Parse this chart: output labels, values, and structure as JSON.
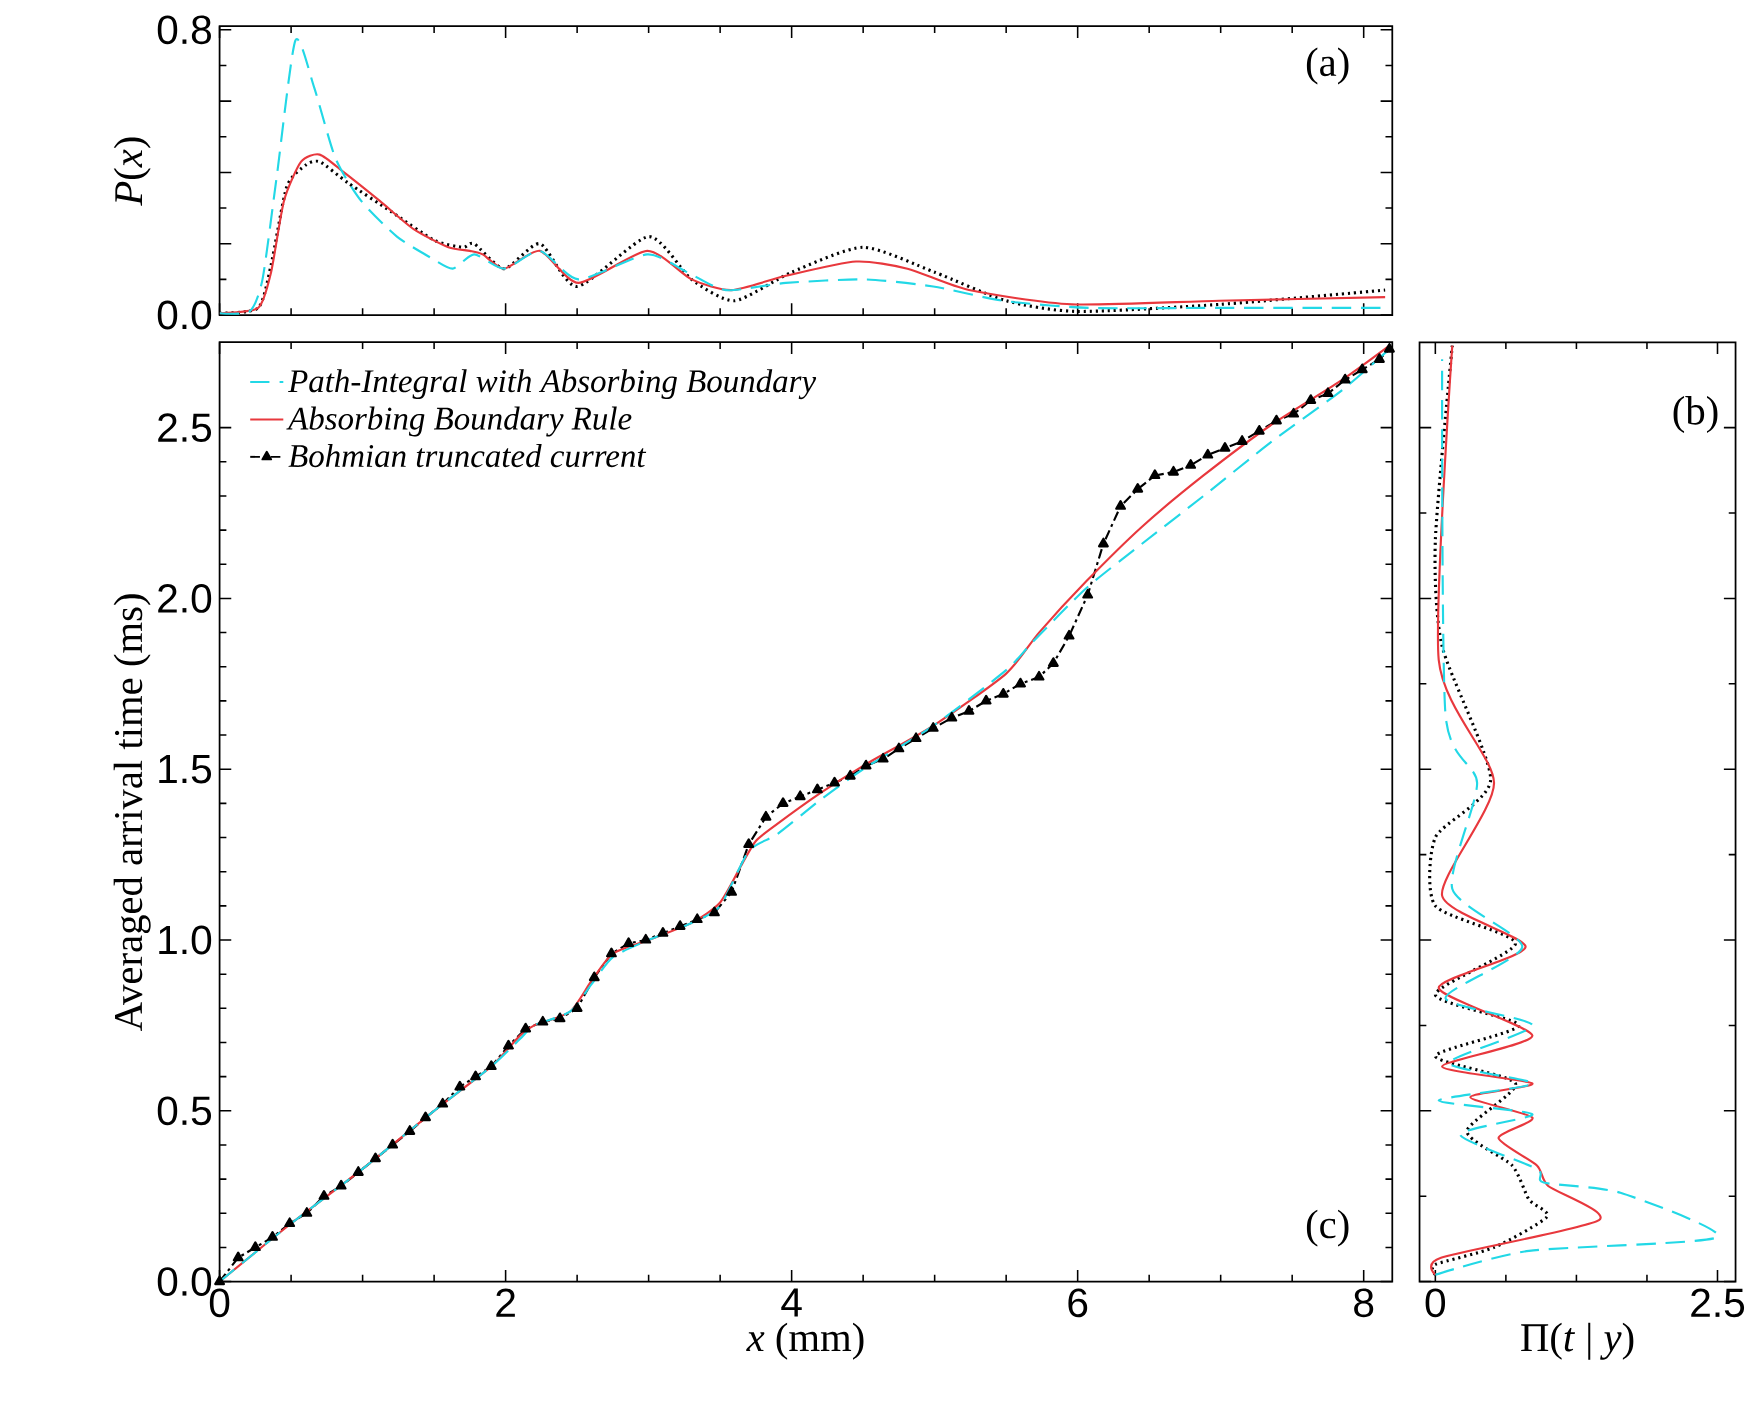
{
  "chart_data": [
    {
      "type": "line",
      "ylabel": "*P*(*x*)",
      "annotations": [
        "(a)"
      ],
      "xlim": [
        0,
        8.2
      ],
      "ylim": [
        0,
        0.81
      ],
      "xticks": [
        0,
        2,
        4,
        6,
        8
      ],
      "yticks": [
        {
          "value": 0,
          "label": "0.0"
        },
        {
          "value": 0.2,
          "label": null
        },
        {
          "value": 0.4,
          "label": null
        },
        {
          "value": 0.6,
          "label": null
        },
        {
          "value": 0.8,
          "label": "0.8"
        }
      ],
      "tick_labels": "y",
      "series": [
        {
          "color": "#22d8e6",
          "line_style": "dashed",
          "x": [
            0,
            0.21,
            0.3,
            0.4,
            0.53,
            0.66,
            0.81,
            0.99,
            1.24,
            1.48,
            1.63,
            1.78,
            1.99,
            2.24,
            2.51,
            2.99,
            3.27,
            3.54,
            3.96,
            4.51,
            4.99,
            5.48,
            6.08,
            6.99,
            8.15
          ],
          "values": [
            0.005,
            0.01,
            0.1,
            0.39,
            0.77,
            0.64,
            0.44,
            0.32,
            0.22,
            0.16,
            0.13,
            0.17,
            0.13,
            0.18,
            0.1,
            0.17,
            0.12,
            0.07,
            0.09,
            0.1,
            0.08,
            0.04,
            0.02,
            0.02,
            0.02
          ]
        },
        {
          "color": "#e8383d",
          "line_style": "solid",
          "x": [
            0,
            0.27,
            0.36,
            0.45,
            0.57,
            0.7,
            0.87,
            1.12,
            1.36,
            1.6,
            1.75,
            1.84,
            1.99,
            2.24,
            2.51,
            2.99,
            3.3,
            3.58,
            3.96,
            4.45,
            4.81,
            5.24,
            5.96,
            6.99,
            8.15
          ],
          "values": [
            0.005,
            0.02,
            0.12,
            0.32,
            0.43,
            0.45,
            0.4,
            0.32,
            0.24,
            0.19,
            0.18,
            0.17,
            0.13,
            0.18,
            0.09,
            0.18,
            0.1,
            0.07,
            0.11,
            0.15,
            0.13,
            0.07,
            0.03,
            0.04,
            0.05
          ]
        },
        {
          "color": "#000000",
          "line_style": "dotted",
          "x": [
            0,
            0.27,
            0.36,
            0.47,
            0.6,
            0.7,
            0.9,
            1.2,
            1.5,
            1.7,
            1.78,
            1.99,
            2.24,
            2.5,
            3.0,
            3.3,
            3.6,
            4.0,
            4.5,
            5.0,
            5.5,
            6.0,
            7.0,
            8.15
          ],
          "values": [
            0.005,
            0.02,
            0.14,
            0.36,
            0.42,
            0.43,
            0.37,
            0.29,
            0.21,
            0.19,
            0.2,
            0.13,
            0.2,
            0.08,
            0.22,
            0.1,
            0.04,
            0.12,
            0.19,
            0.12,
            0.04,
            0.01,
            0.03,
            0.07
          ]
        }
      ]
    },
    {
      "type": "line",
      "xlabel": "*x* (mm)",
      "ylabel": "Averaged arrival time (ms)",
      "annotations": [
        "(c)"
      ],
      "legend": "top left",
      "xlim": [
        0,
        8.2
      ],
      "ylim": [
        0,
        2.75
      ],
      "xticks": [
        0,
        2,
        4,
        6,
        8
      ],
      "yticks": [
        {
          "value": 0,
          "label": "0.0"
        },
        {
          "value": 0.5,
          "label": "0.5"
        },
        {
          "value": 1,
          "label": "1.0"
        },
        {
          "value": 1.5,
          "label": "1.5"
        },
        {
          "value": 2,
          "label": "2.0"
        },
        {
          "value": 2.5,
          "label": "2.5"
        }
      ],
      "series": [
        {
          "name": "Path-Integral with Absorbing Boundary",
          "color": "#22d8e6",
          "line_style": "dashed",
          "x": [
            0,
            0.5,
            1,
            1.5,
            1.9,
            2.1,
            2.2,
            2.45,
            2.6,
            2.75,
            3.0,
            3.3,
            3.5,
            3.7,
            3.9,
            4.2,
            4.5,
            5.0,
            5.5,
            5.68,
            6.06,
            6.45,
            6.88,
            7.36,
            7.85,
            8.18
          ],
          "values": [
            0,
            0.17,
            0.33,
            0.5,
            0.63,
            0.71,
            0.75,
            0.79,
            0.87,
            0.95,
            1.0,
            1.05,
            1.1,
            1.26,
            1.31,
            1.41,
            1.5,
            1.63,
            1.79,
            1.87,
            2.03,
            2.16,
            2.3,
            2.46,
            2.61,
            2.73
          ]
        },
        {
          "name": "Absorbing Boundary Rule",
          "color": "#e8383d",
          "line_style": "solid",
          "x": [
            0,
            0.5,
            1,
            1.5,
            1.9,
            2.1,
            2.2,
            2.45,
            2.6,
            2.75,
            3.0,
            3.3,
            3.5,
            3.65,
            3.75,
            3.9,
            4.2,
            4.5,
            5.0,
            5.5,
            5.73,
            6.06,
            6.45,
            6.88,
            7.36,
            7.85,
            8.18
          ],
          "values": [
            0,
            0.17,
            0.33,
            0.5,
            0.63,
            0.72,
            0.75,
            0.79,
            0.88,
            0.96,
            1.0,
            1.05,
            1.11,
            1.22,
            1.29,
            1.34,
            1.43,
            1.51,
            1.63,
            1.78,
            1.9,
            2.05,
            2.21,
            2.36,
            2.51,
            2.64,
            2.74
          ]
        },
        {
          "name": "Bohmian truncated current",
          "color": "#000000",
          "line_style": "dashdot",
          "marker": "triangle",
          "x": [
            0,
            0.13,
            0.25,
            0.37,
            0.49,
            0.61,
            0.73,
            0.85,
            0.97,
            1.09,
            1.21,
            1.33,
            1.44,
            1.56,
            1.68,
            1.79,
            1.9,
            2.02,
            2.14,
            2.26,
            2.38,
            2.5,
            2.62,
            2.74,
            2.86,
            2.98,
            3.1,
            3.22,
            3.34,
            3.46,
            3.58,
            3.7,
            3.82,
            3.94,
            4.06,
            4.18,
            4.3,
            4.41,
            4.52,
            4.64,
            4.75,
            4.87,
            4.99,
            5.12,
            5.24,
            5.36,
            5.48,
            5.6,
            5.73,
            5.83,
            5.94,
            6.07,
            6.18,
            6.3,
            6.42,
            6.54,
            6.67,
            6.79,
            6.91,
            7.03,
            7.15,
            7.27,
            7.39,
            7.51,
            7.63,
            7.75,
            7.87,
            7.99,
            8.11,
            8.18
          ],
          "values": [
            0,
            0.07,
            0.1,
            0.13,
            0.17,
            0.2,
            0.25,
            0.28,
            0.32,
            0.36,
            0.4,
            0.44,
            0.48,
            0.52,
            0.57,
            0.6,
            0.63,
            0.69,
            0.74,
            0.76,
            0.77,
            0.8,
            0.89,
            0.96,
            0.99,
            1.0,
            1.02,
            1.04,
            1.06,
            1.08,
            1.14,
            1.28,
            1.36,
            1.4,
            1.42,
            1.44,
            1.46,
            1.48,
            1.51,
            1.53,
            1.56,
            1.59,
            1.62,
            1.65,
            1.67,
            1.7,
            1.72,
            1.75,
            1.77,
            1.81,
            1.89,
            2.01,
            2.16,
            2.27,
            2.32,
            2.36,
            2.37,
            2.39,
            2.42,
            2.44,
            2.46,
            2.49,
            2.52,
            2.54,
            2.58,
            2.6,
            2.64,
            2.67,
            2.7,
            2.73
          ]
        }
      ]
    },
    {
      "type": "line",
      "xlabel": "Π(*t* | *y*)",
      "annotations": [
        "(b)"
      ],
      "xlim": [
        -0.14,
        2.66
      ],
      "ylim": [
        0,
        2.75
      ],
      "xticks": [
        0,
        2.5
      ],
      "yticks": [
        0,
        0.5,
        1,
        1.5,
        2,
        2.5
      ],
      "tick_labels": "x",
      "series": [
        {
          "color": "#22d8e6",
          "line_style": "dashed",
          "x": [
            0,
            0.83,
            2.5,
            1.64,
            0.96,
            0.9,
            0.22,
            0.86,
            0.03,
            0.86,
            0.12,
            0.86,
            0.09,
            0.77,
            0.15,
            0.37,
            0.09,
            0.06
          ],
          "values": [
            0.02,
            0.09,
            0.13,
            0.26,
            0.29,
            0.33,
            0.43,
            0.49,
            0.53,
            0.58,
            0.64,
            0.75,
            0.83,
            0.98,
            1.15,
            1.46,
            1.66,
            2.7
          ]
        },
        {
          "color": "#e8383d",
          "line_style": "solid",
          "x": [
            0,
            0.05,
            1.45,
            1.0,
            0.9,
            0.56,
            0.86,
            0.31,
            0.86,
            0.06,
            0.86,
            0.03,
            0.8,
            0.06,
            0.52,
            0.03,
            0.15
          ],
          "values": [
            0.02,
            0.07,
            0.18,
            0.28,
            0.34,
            0.42,
            0.48,
            0.54,
            0.58,
            0.63,
            0.72,
            0.86,
            0.98,
            1.13,
            1.46,
            1.82,
            2.74
          ]
        },
        {
          "color": "#000000",
          "line_style": "dotted",
          "x": [
            0,
            0,
            0.52,
            0.99,
            0.83,
            0.68,
            0.28,
            0.71,
            0,
            0.74,
            0,
            0.71,
            0,
            0,
            0.49,
            0.06,
            0,
            0.15
          ],
          "values": [
            0.02,
            0.05,
            0.1,
            0.19,
            0.24,
            0.34,
            0.44,
            0.58,
            0.66,
            0.75,
            0.84,
            0.99,
            1.1,
            1.3,
            1.47,
            1.86,
            2.17,
            2.74
          ]
        }
      ]
    }
  ]
}
